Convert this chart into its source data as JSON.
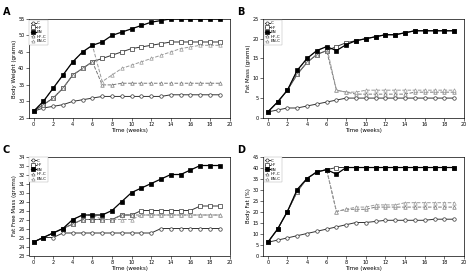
{
  "time_weeks": [
    0,
    1,
    2,
    3,
    4,
    5,
    6,
    7,
    8,
    9,
    10,
    11,
    12,
    13,
    14,
    15,
    16,
    17,
    18,
    19
  ],
  "panel_A": {
    "title": "A",
    "ylabel": "Body Weight (grams)",
    "xlabel": "Time (weeks)",
    "ylim": [
      25,
      55
    ],
    "yticks": [
      25,
      30,
      35,
      40,
      45,
      50,
      55
    ],
    "series": {
      "C": [
        27,
        28,
        28.5,
        29,
        30,
        30.5,
        31,
        31.5,
        31.5,
        31.5,
        31.5,
        31.5,
        31.5,
        31.5,
        32,
        32,
        32,
        32,
        32,
        32
      ],
      "HF": [
        27,
        29,
        31,
        34,
        38,
        40,
        42,
        43,
        44,
        45,
        46,
        46.5,
        47,
        47.5,
        48,
        48,
        48,
        48,
        48,
        48
      ],
      "EN": [
        27,
        30,
        34,
        38,
        42,
        45,
        47,
        48,
        50,
        51,
        52,
        53,
        54,
        54.5,
        55,
        55,
        55,
        55,
        55,
        55
      ],
      "HF-C": [
        27,
        29,
        31,
        34,
        38,
        40,
        42,
        35,
        35,
        35.5,
        35.5,
        35.5,
        35.5,
        35.5,
        35.5,
        35.5,
        35.5,
        35.5,
        35.5,
        35.5
      ],
      "EN-C": [
        27,
        30,
        34,
        38,
        42,
        45,
        47,
        36,
        38,
        40,
        41,
        42,
        43,
        44,
        45,
        46,
        46.5,
        47,
        47,
        47
      ]
    }
  },
  "panel_B": {
    "title": "B",
    "ylabel": "Fat Mass (grams)",
    "xlabel": "Time (weeks)",
    "ylim": [
      0,
      25
    ],
    "yticks": [
      0,
      5,
      10,
      15,
      20,
      25
    ],
    "series": {
      "C": [
        1.5,
        2,
        2.5,
        2.5,
        3,
        3.5,
        4,
        4.5,
        5,
        5,
        5,
        5,
        5,
        5,
        5,
        5,
        5,
        5,
        5,
        5
      ],
      "HF": [
        1.5,
        4,
        7,
        11,
        14,
        16,
        17,
        18,
        19,
        19.5,
        20,
        20.5,
        21,
        21,
        21.5,
        22,
        22,
        22,
        22,
        22
      ],
      "EN": [
        1.5,
        4,
        7,
        12,
        15,
        17,
        18,
        17,
        18.5,
        19.5,
        20,
        20.5,
        21,
        21,
        21.5,
        22,
        22,
        22,
        22,
        22
      ],
      "HF-C": [
        1.5,
        4,
        7,
        11,
        14,
        16,
        17,
        7,
        6.5,
        6,
        6,
        6,
        6,
        6,
        6,
        6.5,
        6.5,
        6.5,
        6.5,
        6.5
      ],
      "EN-C": [
        1.5,
        4,
        7,
        12,
        15,
        17,
        18,
        7,
        6.5,
        6.5,
        7,
        7,
        7,
        7,
        7,
        7,
        7,
        7,
        7,
        7
      ]
    }
  },
  "panel_C": {
    "title": "C",
    "ylabel": "Fat Free Mass (grams)",
    "xlabel": "Time (weeks)",
    "ylim": [
      23,
      34
    ],
    "yticks": [
      23,
      24,
      25,
      26,
      27,
      28,
      29,
      30,
      31,
      32,
      33,
      34
    ],
    "series": {
      "C": [
        24.5,
        25,
        25,
        25.5,
        25.5,
        25.5,
        25.5,
        25.5,
        25.5,
        25.5,
        25.5,
        25.5,
        25.5,
        26,
        26,
        26,
        26,
        26,
        26,
        26
      ],
      "HF": [
        24.5,
        25,
        25.5,
        26,
        26.5,
        27,
        27,
        27,
        27,
        27.5,
        27.5,
        28,
        28,
        28,
        28,
        28,
        28,
        28.5,
        28.5,
        28.5
      ],
      "EN": [
        24.5,
        25,
        25.5,
        26,
        27,
        27.5,
        27.5,
        27.5,
        28,
        29,
        30,
        30.5,
        31,
        31.5,
        32,
        32,
        32.5,
        33,
        33,
        33
      ],
      "HF-C": [
        24.5,
        25,
        25.5,
        26,
        26.5,
        27,
        27,
        27,
        27,
        27.5,
        27.5,
        27.5,
        27.5,
        27.5,
        27.5,
        27.5,
        27.5,
        27.5,
        27.5,
        27.5
      ],
      "EN-C": [
        24.5,
        25,
        25.5,
        26,
        27,
        27.5,
        27.5,
        27,
        27,
        27,
        27,
        27.5,
        27.5,
        27.5,
        27.5,
        27.5,
        27.5,
        27.5,
        27.5,
        27.5
      ]
    }
  },
  "panel_D": {
    "title": "D",
    "ylabel": "Body Fat (%)",
    "xlabel": "Time (weeks)",
    "ylim": [
      0,
      45
    ],
    "yticks": [
      0,
      5,
      10,
      15,
      20,
      25,
      30,
      35,
      40,
      45
    ],
    "series": {
      "C": [
        6,
        7,
        8,
        9,
        10,
        11,
        12,
        13,
        14,
        15,
        15,
        15.5,
        16,
        16,
        16,
        16,
        16,
        16.5,
        16.5,
        16.5
      ],
      "HF": [
        6,
        12,
        20,
        29,
        35,
        38,
        39,
        40,
        40,
        40,
        40,
        40,
        40,
        40,
        40,
        40,
        40,
        40,
        40,
        40
      ],
      "EN": [
        6,
        12,
        20,
        30,
        35,
        38,
        39,
        37,
        40,
        40,
        40,
        40,
        40,
        40,
        40,
        40,
        40,
        40,
        40,
        40
      ],
      "HF-C": [
        6,
        12,
        20,
        29,
        35,
        38,
        39,
        20,
        21,
        21,
        21,
        22,
        22,
        22,
        22,
        22,
        22,
        22,
        22,
        22
      ],
      "EN-C": [
        6,
        12,
        20,
        30,
        35,
        38,
        39,
        20,
        21,
        22,
        22,
        23,
        23,
        23,
        24,
        24,
        24,
        24,
        24,
        24
      ]
    }
  },
  "series_styles": {
    "C": {
      "color": "#333333",
      "marker": "o",
      "markersize": 2.5,
      "linestyle": "-",
      "linewidth": 0.7,
      "filled": false
    },
    "HF": {
      "color": "#333333",
      "marker": "s",
      "markersize": 2.5,
      "linestyle": "-",
      "linewidth": 0.7,
      "filled": false
    },
    "EN": {
      "color": "#000000",
      "marker": "s",
      "markersize": 2.5,
      "linestyle": "-",
      "linewidth": 0.9,
      "filled": true
    },
    "HF-C": {
      "color": "#777777",
      "marker": "^",
      "markersize": 2.5,
      "linestyle": "--",
      "linewidth": 0.7,
      "filled": false
    },
    "EN-C": {
      "color": "#999999",
      "marker": "^",
      "markersize": 2.5,
      "linestyle": "--",
      "linewidth": 0.7,
      "filled": false
    }
  },
  "legend_labels": [
    "C",
    "HF",
    "EN",
    "HF-C",
    "EN-C"
  ],
  "xticks": [
    0,
    2,
    4,
    6,
    8,
    10,
    12,
    14,
    16,
    18,
    20
  ]
}
